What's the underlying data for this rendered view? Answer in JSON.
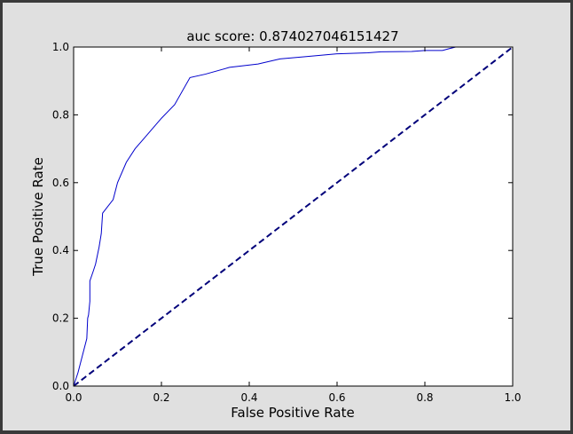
{
  "chart_data": {
    "type": "line",
    "title": "auc score: 0.874027046151427",
    "xlabel": "False Positive Rate",
    "ylabel": "True Positive Rate",
    "xlim": [
      0.0,
      1.0
    ],
    "ylim": [
      0.0,
      1.0
    ],
    "xticks": [
      "0.0",
      "0.2",
      "0.4",
      "0.6",
      "0.8",
      "1.0"
    ],
    "yticks": [
      "0.0",
      "0.2",
      "0.4",
      "0.6",
      "0.8",
      "1.0"
    ],
    "grid": false,
    "colors": {
      "roc": "#0000cc",
      "diagonal": "#00007a",
      "axes": "#000000",
      "plot_bg": "#ffffff",
      "figure_bg": "#e0e0e0"
    },
    "series": [
      {
        "style": "solid",
        "x": [
          0.0,
          0.01,
          0.02,
          0.03,
          0.032,
          0.034,
          0.037,
          0.037,
          0.045,
          0.05,
          0.058,
          0.063,
          0.066,
          0.072,
          0.09,
          0.1,
          0.12,
          0.14,
          0.16,
          0.2,
          0.23,
          0.265,
          0.3,
          0.355,
          0.42,
          0.47,
          0.53,
          0.6,
          0.67,
          0.7,
          0.77,
          0.8,
          0.84,
          0.855,
          0.87,
          0.9,
          1.0
        ],
        "y": [
          0.0,
          0.04,
          0.09,
          0.14,
          0.2,
          0.21,
          0.25,
          0.31,
          0.34,
          0.36,
          0.41,
          0.45,
          0.51,
          0.52,
          0.55,
          0.6,
          0.66,
          0.7,
          0.73,
          0.79,
          0.83,
          0.91,
          0.92,
          0.94,
          0.95,
          0.965,
          0.972,
          0.98,
          0.983,
          0.986,
          0.987,
          0.99,
          0.99,
          0.995,
          1.0,
          1.0,
          1.0
        ]
      },
      {
        "style": "dashed",
        "x": [
          0.0,
          1.0
        ],
        "y": [
          0.0,
          1.0
        ]
      }
    ]
  }
}
